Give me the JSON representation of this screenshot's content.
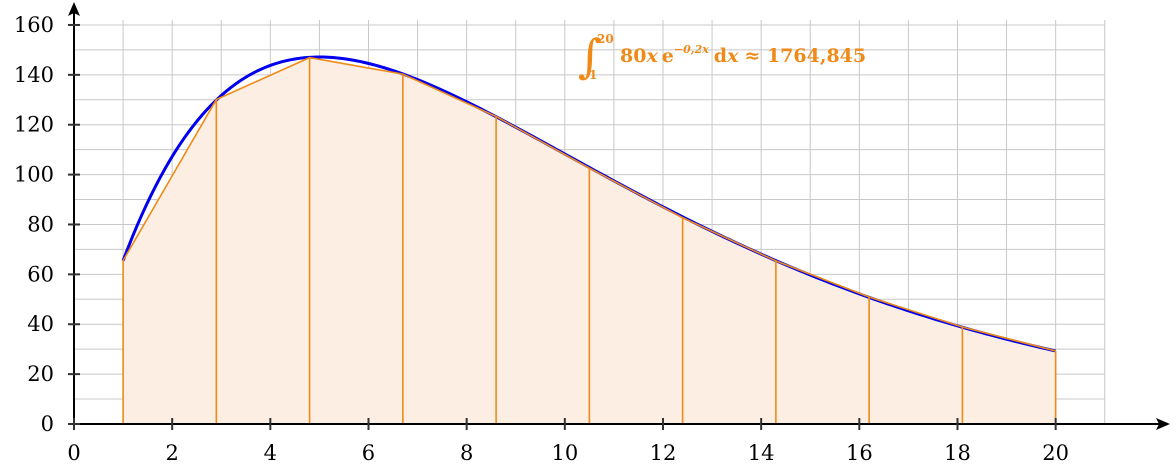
{
  "chart_data": {
    "type": "area",
    "function": "80x e^(-0.2x)",
    "interval": [
      1,
      20
    ],
    "subdivisions": 10,
    "xlim": [
      0,
      21.8
    ],
    "ylim": [
      0,
      166
    ],
    "x_ticks": [
      0,
      2,
      4,
      6,
      8,
      10,
      12,
      14,
      16,
      18,
      20
    ],
    "y_ticks": [
      0,
      20,
      40,
      60,
      80,
      100,
      120,
      140,
      160
    ],
    "grid": true,
    "trapezoid_nodes": [
      {
        "x": 1.0,
        "y": 65.5
      },
      {
        "x": 2.9,
        "y": 130.1
      },
      {
        "x": 4.8,
        "y": 146.9
      },
      {
        "x": 6.7,
        "y": 140.3
      },
      {
        "x": 8.6,
        "y": 123.3
      },
      {
        "x": 10.5,
        "y": 102.6
      },
      {
        "x": 12.4,
        "y": 82.7
      },
      {
        "x": 14.3,
        "y": 65.4
      },
      {
        "x": 16.2,
        "y": 50.9
      },
      {
        "x": 18.1,
        "y": 38.9
      },
      {
        "x": 20.0,
        "y": 29.3
      }
    ],
    "curve_color": "#0000ee",
    "trapezoid_color": "#ef8a17",
    "fill_color": "#fdeee3",
    "annotation": {
      "integral_sign": "∫",
      "upper_limit": "20",
      "lower_limit": "1",
      "integrand_coeff": "80",
      "integrand_var": "x",
      "exp_base": "e",
      "exp_power": "−0,2x",
      "differential_d": "d",
      "differential_var": "x",
      "approx_value": "≈ 1764,845"
    }
  }
}
